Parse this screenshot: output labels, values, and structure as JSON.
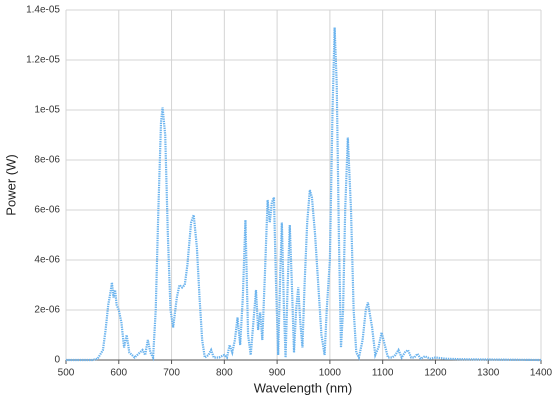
{
  "chart_data": {
    "type": "line",
    "x_label": "Wavelength (nm)",
    "y_label": "Power (W)",
    "x": [
      500,
      550,
      560,
      570,
      575,
      580,
      585,
      587,
      590,
      593,
      596,
      600,
      605,
      610,
      615,
      620,
      630,
      640,
      645,
      650,
      655,
      660,
      665,
      670,
      675,
      680,
      683,
      688,
      693,
      698,
      703,
      710,
      715,
      720,
      725,
      730,
      737,
      742,
      748,
      753,
      758,
      763,
      770,
      775,
      780,
      790,
      800,
      805,
      810,
      815,
      820,
      825,
      830,
      835,
      840,
      845,
      850,
      855,
      860,
      864,
      868,
      872,
      877,
      882,
      886,
      890,
      894,
      898,
      902,
      906,
      909,
      913,
      916,
      920,
      924,
      928,
      932,
      936,
      940,
      944,
      948,
      952,
      957,
      962,
      966,
      972,
      978,
      984,
      990,
      994,
      1000,
      1005,
      1009,
      1013,
      1017,
      1021,
      1025,
      1029,
      1034,
      1040,
      1045,
      1050,
      1055,
      1062,
      1068,
      1072,
      1080,
      1086,
      1092,
      1098,
      1104,
      1110,
      1118,
      1124,
      1130,
      1136,
      1142,
      1148,
      1154,
      1160,
      1166,
      1172,
      1180,
      1190,
      1200,
      1220,
      1250,
      1300,
      1350,
      1400
    ],
    "series": [
      {
        "color": "#6cb4ee",
        "values": [
          0,
          0,
          5e-08,
          4e-07,
          1.2e-06,
          2.2e-06,
          2.8e-06,
          3.1e-06,
          2.5e-06,
          2.8e-06,
          2.2e-06,
          2e-06,
          1.5e-06,
          5e-07,
          1e-06,
          3e-07,
          1e-07,
          3e-07,
          4e-07,
          2e-07,
          8e-07,
          3e-07,
          1e-07,
          2e-06,
          6e-06,
          9.5e-06,
          1.01e-05,
          9e-06,
          5e-06,
          2e-06,
          1.3e-06,
          2.5e-06,
          3e-06,
          2.9e-06,
          3e-06,
          3.8e-06,
          5.5e-06,
          5.8e-06,
          4.5e-06,
          2.5e-06,
          8e-07,
          1e-07,
          2e-07,
          4e-07,
          1e-07,
          1e-07,
          2e-07,
          1e-07,
          6e-07,
          3e-07,
          8e-07,
          1.7e-06,
          6e-07,
          2.5e-06,
          5.6e-06,
          1e-06,
          2e-07,
          1.5e-06,
          2.8e-06,
          1.2e-06,
          1.9e-06,
          8e-07,
          3.5e-06,
          6.4e-06,
          5.5e-06,
          6.3e-06,
          6.5e-06,
          3e-06,
          2e-07,
          3.5e-06,
          5.5e-06,
          2e-06,
          1e-07,
          3e-06,
          5.4e-06,
          3e-06,
          3e-07,
          2e-06,
          2.9e-06,
          1.5e-06,
          5e-07,
          3e-06,
          5.5e-06,
          6.8e-06,
          6.5e-06,
          5e-06,
          3e-06,
          1e-06,
          2e-07,
          2e-06,
          4e-06,
          1e-05,
          1.33e-05,
          1.1e-05,
          5e-06,
          5e-07,
          2e-06,
          6e-06,
          8.9e-06,
          6e-06,
          2e-06,
          3e-07,
          1e-07,
          8e-07,
          2e-06,
          2.3e-06,
          1.3e-06,
          2e-07,
          5e-07,
          1.1e-06,
          6e-07,
          1e-07,
          1e-07,
          2e-07,
          4e-07,
          1e-07,
          3e-07,
          4e-07,
          1e-07,
          1e-07,
          2.5e-07,
          5e-08,
          1.5e-07,
          5e-08,
          1e-07,
          5e-08,
          3e-08,
          2e-08,
          1e-08,
          0
        ]
      }
    ],
    "xlim": [
      500,
      1400
    ],
    "xticks": [
      500,
      600,
      700,
      800,
      900,
      1000,
      1100,
      1200,
      1300,
      1400
    ],
    "ylim": [
      0,
      1.4e-05
    ],
    "yticks": [
      0,
      {
        "value": 2e-06,
        "label": "2e-06"
      },
      {
        "value": 4e-06,
        "label": "4e-06"
      },
      {
        "value": 6e-06,
        "label": "6e-06"
      },
      {
        "value": 8e-06,
        "label": "8e-06"
      },
      {
        "value": 1e-05,
        "label": "1e-05"
      },
      {
        "value": 1.2e-05,
        "label": "1.2e-05"
      },
      {
        "value": 1.4e-05,
        "label": "1.4e-05"
      }
    ],
    "grid": true
  }
}
